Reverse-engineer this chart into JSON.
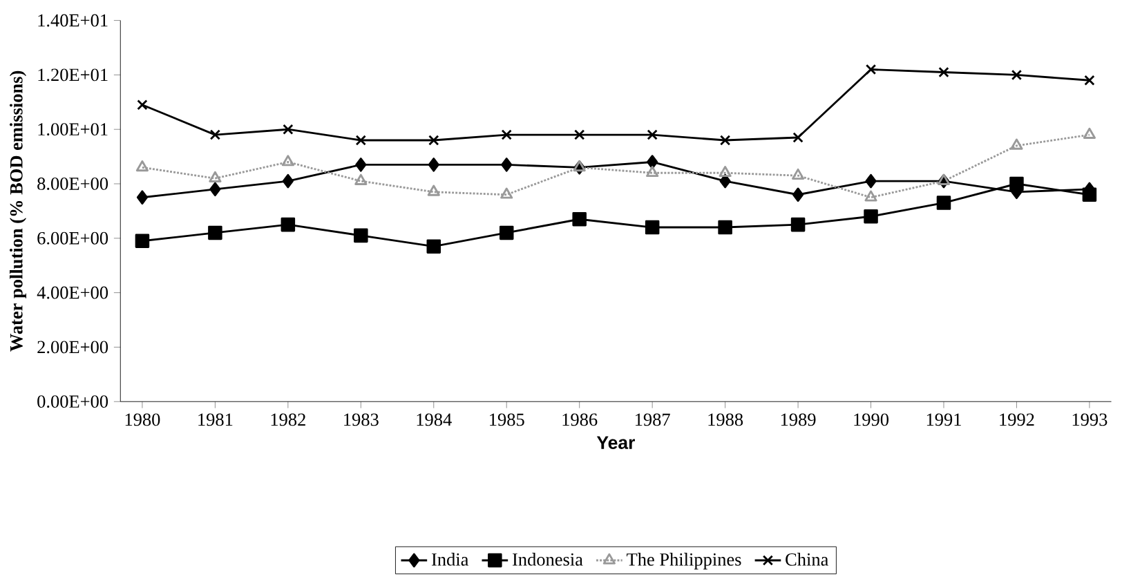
{
  "chart_data": {
    "type": "line",
    "xlabel": "Year",
    "ylabel": "Water pollution (% BOD emissions)",
    "categories": [
      "1980",
      "1981",
      "1982",
      "1983",
      "1984",
      "1985",
      "1986",
      "1987",
      "1988",
      "1989",
      "1990",
      "1991",
      "1992",
      "1993"
    ],
    "ylim": [
      0,
      14
    ],
    "yticks": [
      {
        "value": 0,
        "label": "0.00E+00"
      },
      {
        "value": 2,
        "label": "2.00E+00"
      },
      {
        "value": 4,
        "label": "4.00E+00"
      },
      {
        "value": 6,
        "label": "6.00E+00"
      },
      {
        "value": 8,
        "label": "8.00E+00"
      },
      {
        "value": 10,
        "label": "1.00E+01"
      },
      {
        "value": 12,
        "label": "1.20E+01"
      },
      {
        "value": 14,
        "label": "1.40E+01"
      }
    ],
    "grid": false,
    "legend": "bottom",
    "series": [
      {
        "name": "India",
        "color": "#000000",
        "marker": "diamond",
        "line_style": "solid",
        "values": [
          7.5,
          7.8,
          8.1,
          8.7,
          8.7,
          8.7,
          8.6,
          8.8,
          8.1,
          7.6,
          8.1,
          8.1,
          7.7,
          7.8
        ]
      },
      {
        "name": "Indonesia",
        "color": "#000000",
        "marker": "square",
        "line_style": "solid",
        "values": [
          5.9,
          6.2,
          6.5,
          6.1,
          5.7,
          6.2,
          6.7,
          6.4,
          6.4,
          6.5,
          6.8,
          7.3,
          8.0,
          7.6
        ]
      },
      {
        "name": "The Philippines",
        "color": "#999999",
        "marker": "triangle",
        "line_style": "dotted",
        "values": [
          8.6,
          8.2,
          8.8,
          8.1,
          7.7,
          7.6,
          8.6,
          8.4,
          8.4,
          8.3,
          7.5,
          8.1,
          9.4,
          9.8
        ]
      },
      {
        "name": "China",
        "color": "#000000",
        "marker": "cross",
        "line_style": "solid",
        "values": [
          10.9,
          9.8,
          10.0,
          9.6,
          9.6,
          9.8,
          9.8,
          9.8,
          9.6,
          9.7,
          12.2,
          12.1,
          12.0,
          11.8
        ]
      }
    ]
  }
}
